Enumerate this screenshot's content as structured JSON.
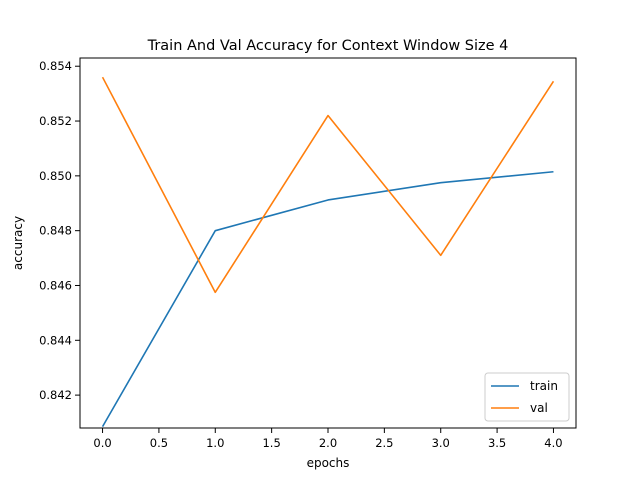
{
  "chart_data": {
    "type": "line",
    "title": "Train And Val Accuracy for Context Window Size 4",
    "xlabel": "epochs",
    "ylabel": "accuracy",
    "x": [
      0,
      1,
      2,
      3,
      4
    ],
    "xlim": [
      -0.2,
      4.2
    ],
    "ylim": [
      0.8408,
      0.8543
    ],
    "xticks": [
      0.0,
      0.5,
      1.0,
      1.5,
      2.0,
      2.5,
      3.0,
      3.5,
      4.0
    ],
    "xtick_labels": [
      "0.0",
      "0.5",
      "1.0",
      "1.5",
      "2.0",
      "2.5",
      "3.0",
      "3.5",
      "4.0"
    ],
    "yticks": [
      0.842,
      0.844,
      0.846,
      0.848,
      0.85,
      0.852,
      0.854
    ],
    "ytick_labels": [
      "0.842",
      "0.844",
      "0.846",
      "0.848",
      "0.850",
      "0.852",
      "0.854"
    ],
    "grid": false,
    "legend_position": "lower-right",
    "series": [
      {
        "name": "train",
        "color": "#1f77b4",
        "values": [
          0.84085,
          0.848,
          0.84912,
          0.84975,
          0.85015
        ]
      },
      {
        "name": "val",
        "color": "#ff7f0e",
        "values": [
          0.8536,
          0.84575,
          0.8522,
          0.8471,
          0.85345
        ]
      }
    ]
  }
}
